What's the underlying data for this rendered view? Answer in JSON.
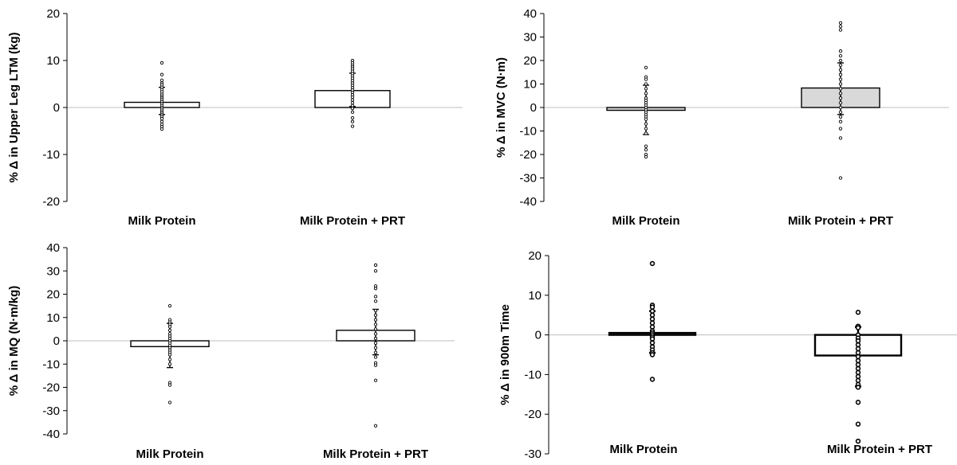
{
  "chart_data": [
    {
      "type": "bar",
      "ylabel": "% Δ in Upper Leg LTM (kg)",
      "ylim": [
        -20,
        20
      ],
      "yticks": [
        -20,
        -10,
        0,
        10,
        20
      ],
      "categories": [
        "Milk Protein",
        "Milk Protein + PRT"
      ],
      "values": [
        1.1,
        3.6
      ],
      "error_bars": [
        {
          "low": -1.5,
          "high": 4.3
        },
        {
          "low": 0.2,
          "high": 7.3
        }
      ],
      "points": [
        [
          9.5,
          7.0,
          5.8,
          5.2,
          4.8,
          4.3,
          3.8,
          3.3,
          2.8,
          2.4,
          2.0,
          1.6,
          1.2,
          0.8,
          0.4,
          0.0,
          -0.4,
          -0.8,
          -1.2,
          -1.6,
          -2.0,
          -2.4,
          -3.0,
          -3.6,
          -4.1,
          -4.6
        ],
        [
          10.0,
          9.5,
          9.0,
          8.6,
          8.2,
          7.7,
          7.2,
          6.7,
          6.2,
          5.7,
          5.2,
          4.7,
          4.2,
          3.7,
          3.2,
          2.7,
          2.2,
          1.6,
          1.0,
          0.4,
          -0.2,
          -1.0,
          -2.2,
          -3.0,
          -4.0
        ]
      ]
    },
    {
      "type": "bar",
      "ylabel": "% Δ in MVC (N·m)",
      "ylim": [
        -40,
        40
      ],
      "yticks": [
        -40,
        -30,
        -20,
        -10,
        0,
        10,
        20,
        30,
        40
      ],
      "categories": [
        "Milk Protein",
        "Milk Protein + PRT"
      ],
      "values": [
        -1.2,
        8.3
      ],
      "error_bars": [
        {
          "low": -11.5,
          "high": 9.5
        },
        {
          "low": -3.0,
          "high": 19.0
        }
      ],
      "points": [
        [
          17.0,
          13.0,
          12.0,
          10.0,
          8.0,
          6.0,
          4.0,
          3.0,
          2.0,
          1.0,
          0.0,
          -1.0,
          -2.0,
          -3.0,
          -4.0,
          -5.0,
          -7.0,
          -9.0,
          -11.0,
          -16.5,
          -18.0,
          -20.0,
          -21.0
        ],
        [
          36.0,
          34.5,
          33.0,
          24.0,
          22.0,
          20.0,
          18.0,
          16.0,
          14.0,
          12.0,
          10.0,
          8.0,
          6.0,
          4.0,
          2.0,
          0.0,
          -2.0,
          -4.0,
          -6.0,
          -9.0,
          -13.0,
          -30.0
        ]
      ]
    },
    {
      "type": "bar",
      "ylabel": "% Δ in MQ (N·m/kg)",
      "ylim": [
        -40,
        40
      ],
      "yticks": [
        -40,
        -30,
        -20,
        -10,
        0,
        10,
        20,
        30,
        40
      ],
      "categories": [
        "Milk Protein",
        "Milk Protein + PRT"
      ],
      "values": [
        -2.5,
        4.5
      ],
      "error_bars": [
        {
          "low": -11.5,
          "high": 7.5
        },
        {
          "low": -6.0,
          "high": 13.5
        }
      ],
      "points": [
        [
          15.0,
          9.0,
          8.0,
          7.0,
          6.0,
          4.5,
          3.0,
          2.0,
          1.0,
          0.0,
          -1.0,
          -2.0,
          -3.0,
          -4.0,
          -5.0,
          -6.0,
          -8.0,
          -10.0,
          -18.0,
          -19.0,
          -26.5
        ],
        [
          32.5,
          30.0,
          23.5,
          22.5,
          19.0,
          17.0,
          13.0,
          11.0,
          9.0,
          7.0,
          5.0,
          3.0,
          1.0,
          -1.0,
          -3.0,
          -5.0,
          -7.0,
          -9.5,
          -10.5,
          -17.0,
          -36.5
        ]
      ]
    },
    {
      "type": "bar",
      "ylabel": "% Δ in 900m Time",
      "ylim": [
        -30,
        20
      ],
      "yticks": [
        -30,
        -20,
        -10,
        0,
        10,
        20
      ],
      "categories": [
        "Milk Protein",
        "Milk Protein + PRT"
      ],
      "values": [
        0.5,
        -5.2
      ],
      "error_bars": [
        {
          "low": -4.5,
          "high": 6.0
        },
        {
          "low": -13.0,
          "high": 2.0
        }
      ],
      "points": [
        [
          18.0,
          7.5,
          7.0,
          6.0,
          5.0,
          4.0,
          3.0,
          2.0,
          1.0,
          0.5,
          0.0,
          -0.5,
          -1.0,
          -2.0,
          -3.0,
          -3.8,
          -4.5,
          -5.0,
          -11.2
        ],
        [
          5.7,
          2.2,
          1.8,
          0.0,
          -0.8,
          -1.5,
          -2.5,
          -3.5,
          -4.5,
          -5.5,
          -6.5,
          -7.5,
          -8.5,
          -9.5,
          -10.5,
          -11.5,
          -12.5,
          -13.2,
          -17.0,
          -22.5,
          -26.8
        ]
      ]
    }
  ]
}
